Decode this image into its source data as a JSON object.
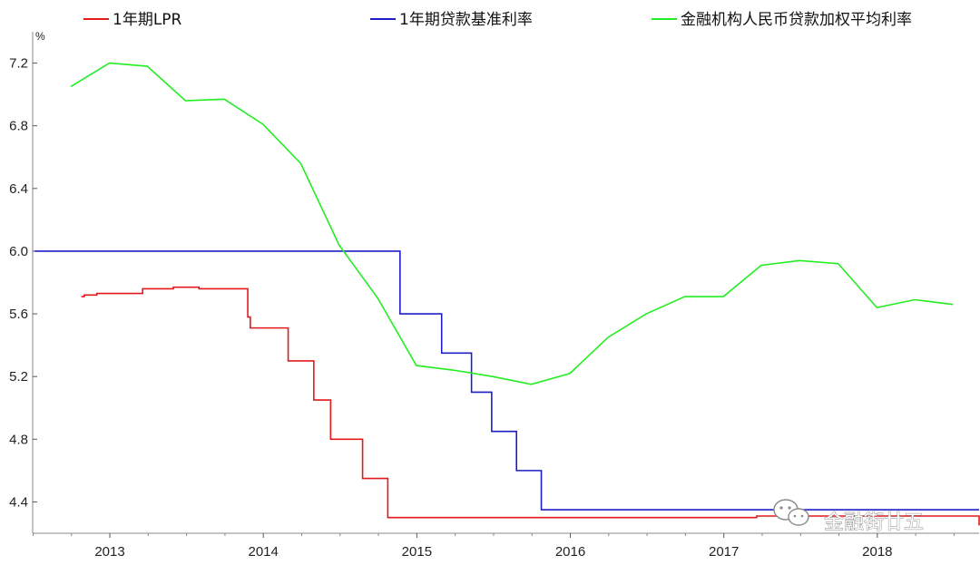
{
  "chart_data": {
    "type": "line",
    "ylabel": "%",
    "ylim": [
      4.2,
      7.4
    ],
    "xlim": [
      "2012-07-01",
      "2018-08-31"
    ],
    "y_ticks": [
      "4.4",
      "4.8",
      "5.2",
      "5.6",
      "6.0",
      "6.4",
      "6.8",
      "7.2"
    ],
    "x_ticks": [
      "2013",
      "2014",
      "2015",
      "2016",
      "2017",
      "2018"
    ],
    "grid": false,
    "legend_position": "top",
    "series": [
      {
        "name": "1年期LPR",
        "color": "#e31a1c",
        "shape": "step",
        "points": [
          [
            "2012-10-25",
            5.71
          ],
          [
            "2012-11-01",
            5.72
          ],
          [
            "2012-12-01",
            5.73
          ],
          [
            "2013-03-15",
            5.73
          ],
          [
            "2013-03-20",
            5.76
          ],
          [
            "2013-06-01",
            5.77
          ],
          [
            "2013-08-01",
            5.76
          ],
          [
            "2013-11-25",
            5.76
          ],
          [
            "2013-11-25",
            5.58
          ],
          [
            "2013-12-01",
            5.51
          ],
          [
            "2014-03-01",
            5.51
          ],
          [
            "2014-03-01",
            5.3
          ],
          [
            "2014-05-01",
            5.3
          ],
          [
            "2014-05-01",
            5.05
          ],
          [
            "2014-06-10",
            5.05
          ],
          [
            "2014-06-10",
            4.8
          ],
          [
            "2014-08-25",
            4.8
          ],
          [
            "2014-08-25",
            4.55
          ],
          [
            "2014-10-24",
            4.55
          ],
          [
            "2014-10-24",
            4.3
          ],
          [
            "2017-03-20",
            4.3
          ],
          [
            "2017-03-20",
            4.31
          ],
          [
            "2018-08-26",
            4.31
          ],
          [
            "2018-08-31",
            4.25
          ]
        ]
      },
      {
        "name": "1年期贷款基准利率",
        "color": "#1f1fc8",
        "shape": "step",
        "points": [
          [
            "2012-07-06",
            6.0
          ],
          [
            "2014-11-21",
            6.0
          ],
          [
            "2014-11-22",
            5.6
          ],
          [
            "2015-03-01",
            5.6
          ],
          [
            "2015-03-01",
            5.35
          ],
          [
            "2015-05-11",
            5.35
          ],
          [
            "2015-05-11",
            5.1
          ],
          [
            "2015-06-28",
            5.1
          ],
          [
            "2015-06-28",
            4.85
          ],
          [
            "2015-08-26",
            4.85
          ],
          [
            "2015-08-26",
            4.6
          ],
          [
            "2015-10-24",
            4.6
          ],
          [
            "2015-10-24",
            4.35
          ],
          [
            "2018-08-31",
            4.35
          ]
        ]
      },
      {
        "name": "金融机构人民币贷款加权平均利率",
        "color": "#22ee22",
        "shape": "linear",
        "points": [
          [
            "2012-09-30",
            7.05
          ],
          [
            "2012-12-31",
            7.2
          ],
          [
            "2013-03-31",
            7.18
          ],
          [
            "2013-06-30",
            6.96
          ],
          [
            "2013-09-30",
            6.97
          ],
          [
            "2013-12-31",
            6.81
          ],
          [
            "2014-03-31",
            6.56
          ],
          [
            "2014-06-30",
            6.04
          ],
          [
            "2014-09-30",
            5.7
          ],
          [
            "2014-12-31",
            5.27
          ],
          [
            "2015-03-31",
            5.24
          ],
          [
            "2015-06-30",
            5.2
          ],
          [
            "2015-09-30",
            5.15
          ],
          [
            "2015-12-31",
            5.22
          ],
          [
            "2016-03-31",
            5.45
          ],
          [
            "2016-06-30",
            5.6
          ],
          [
            "2016-09-30",
            5.71
          ],
          [
            "2016-12-31",
            5.71
          ],
          [
            "2017-03-31",
            5.91
          ],
          [
            "2017-06-30",
            5.94
          ],
          [
            "2017-09-30",
            5.92
          ],
          [
            "2017-12-31",
            5.64
          ],
          [
            "2018-03-31",
            5.69
          ],
          [
            "2018-06-30",
            5.66
          ]
        ]
      }
    ]
  },
  "watermark": {
    "text": "金融街廿五",
    "icon": "wechat-icon"
  }
}
